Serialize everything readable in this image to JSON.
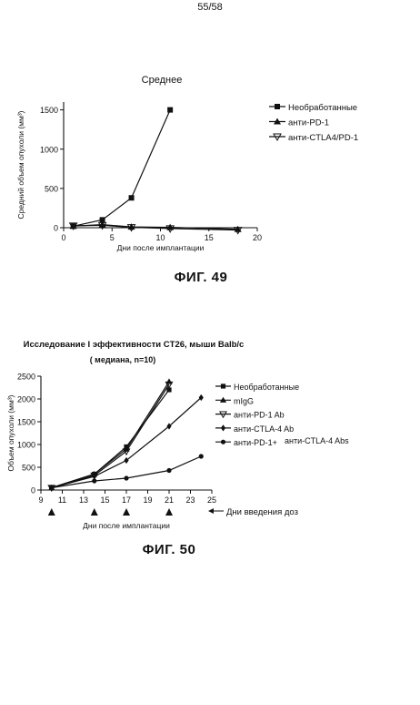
{
  "page": {
    "number": "55/58"
  },
  "figures": [
    {
      "caption": "ФИГ. 49"
    },
    {
      "caption": "ФИГ. 50"
    }
  ],
  "chart_data": [
    {
      "type": "line",
      "title": "Среднее",
      "xlabel": "Дни после имплантации",
      "ylabel": "Средний объем опухоли (мм³)",
      "xlim": [
        0,
        20
      ],
      "ylim": [
        0,
        1600
      ],
      "xticks": [
        0,
        5,
        10,
        15,
        20
      ],
      "yticks": [
        0,
        500,
        1000,
        1500
      ],
      "legend_position": "right",
      "series": [
        {
          "name": "Необработанные",
          "marker": "square",
          "x": [
            1,
            4,
            7,
            11
          ],
          "y": [
            20,
            100,
            380,
            1500
          ]
        },
        {
          "name": "анти-PD-1",
          "marker": "triangle-up",
          "x": [
            1,
            4,
            7,
            11,
            18
          ],
          "y": [
            20,
            40,
            10,
            5,
            -20
          ]
        },
        {
          "name": "анти-CTLA4/PD-1",
          "marker": "triangle-down",
          "x": [
            1,
            4,
            7,
            11,
            18
          ],
          "y": [
            25,
            30,
            5,
            -10,
            -30
          ]
        }
      ]
    },
    {
      "type": "line",
      "title": "Исследование I эффективности CT26, мыши Balb/c",
      "subtitle": "( медиана, n=10)",
      "xlabel": "Дни после имплантации",
      "ylabel": "Объем опухоли (мм³)",
      "xlim": [
        9,
        25
      ],
      "ylim": [
        0,
        2500
      ],
      "xticks": [
        9,
        11,
        13,
        15,
        17,
        19,
        21,
        23,
        25
      ],
      "yticks": [
        0,
        500,
        1000,
        1500,
        2000,
        2500
      ],
      "legend_position": "right",
      "dosing_days": [
        10,
        14,
        17,
        21
      ],
      "dosing_label": "Дни введения доз",
      "series": [
        {
          "name": "Необработанные",
          "marker": "square",
          "x": [
            10,
            14,
            17,
            21
          ],
          "y": [
            50,
            350,
            950,
            2200
          ]
        },
        {
          "name": "mIgG",
          "marker": "triangle-up",
          "x": [
            10,
            14,
            17,
            21
          ],
          "y": [
            50,
            350,
            900,
            2380
          ]
        },
        {
          "name": "анти-PD-1 Ab",
          "marker": "triangle-down",
          "x": [
            10,
            14,
            17,
            21
          ],
          "y": [
            50,
            320,
            850,
            2320
          ]
        },
        {
          "name": "анти-CTLA-4 Ab",
          "marker": "diamond",
          "x": [
            10,
            14,
            17,
            21,
            24
          ],
          "y": [
            50,
            300,
            650,
            1400,
            2030
          ]
        },
        {
          "name": "анти-PD-1+",
          "name_extra": "анти-CTLA-4 Abs",
          "marker": "circle",
          "x": [
            10,
            14,
            17,
            21,
            24
          ],
          "y": [
            50,
            200,
            260,
            430,
            740
          ]
        }
      ]
    }
  ]
}
